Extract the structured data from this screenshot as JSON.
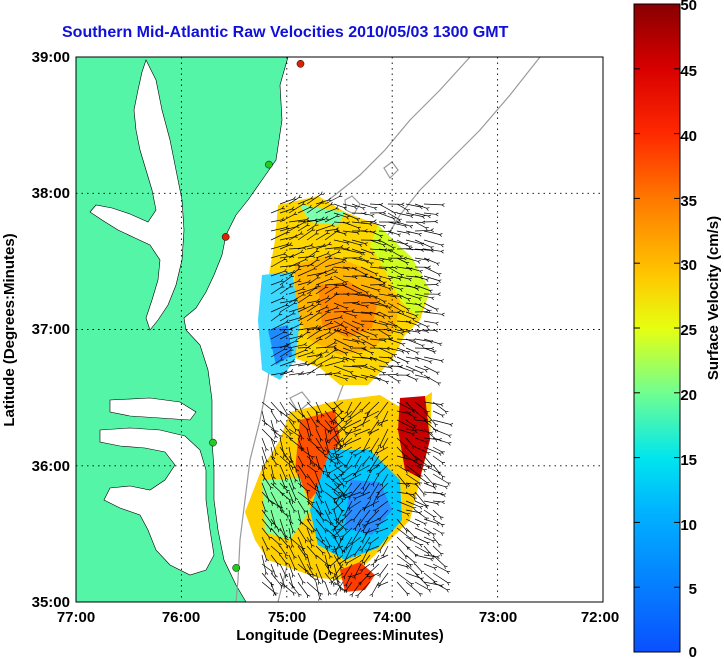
{
  "title": "Southern Mid-Atlantic Raw Velocities 2010/05/03 1300 GMT",
  "xlabel": "Longitude (Degrees:Minutes)",
  "ylabel": "Latitude (Degrees:Minutes)",
  "x_ticks": [
    "77:00",
    "76:00",
    "75:00",
    "74:00",
    "73:00",
    "72:00"
  ],
  "y_ticks": [
    "39:00",
    "38:00",
    "37:00",
    "36:00",
    "35:00"
  ],
  "colorbar": {
    "label": "Surface Velocity (cm/s)",
    "ticks": [
      "0",
      "5",
      "10",
      "15",
      "20",
      "25",
      "30",
      "35",
      "40",
      "45",
      "50"
    ],
    "range": [
      0,
      50
    ]
  },
  "colors": {
    "land": "#55f5a8",
    "title": "#1010d8",
    "arrow": "#000000",
    "station_green": "#22cc22",
    "station_red": "#dd2200"
  },
  "map_extent": {
    "lon": [
      -77,
      -72
    ],
    "lat": [
      35,
      39
    ]
  },
  "stations": [
    {
      "lon": -74.87,
      "lat": 38.95,
      "status": "red"
    },
    {
      "lon": -75.17,
      "lat": 38.21,
      "status": "green"
    },
    {
      "lon": -75.58,
      "lat": 37.68,
      "status": "red"
    },
    {
      "lon": -75.7,
      "lat": 36.17,
      "status": "green"
    },
    {
      "lon": -75.48,
      "lat": 35.25,
      "status": "green"
    }
  ]
}
